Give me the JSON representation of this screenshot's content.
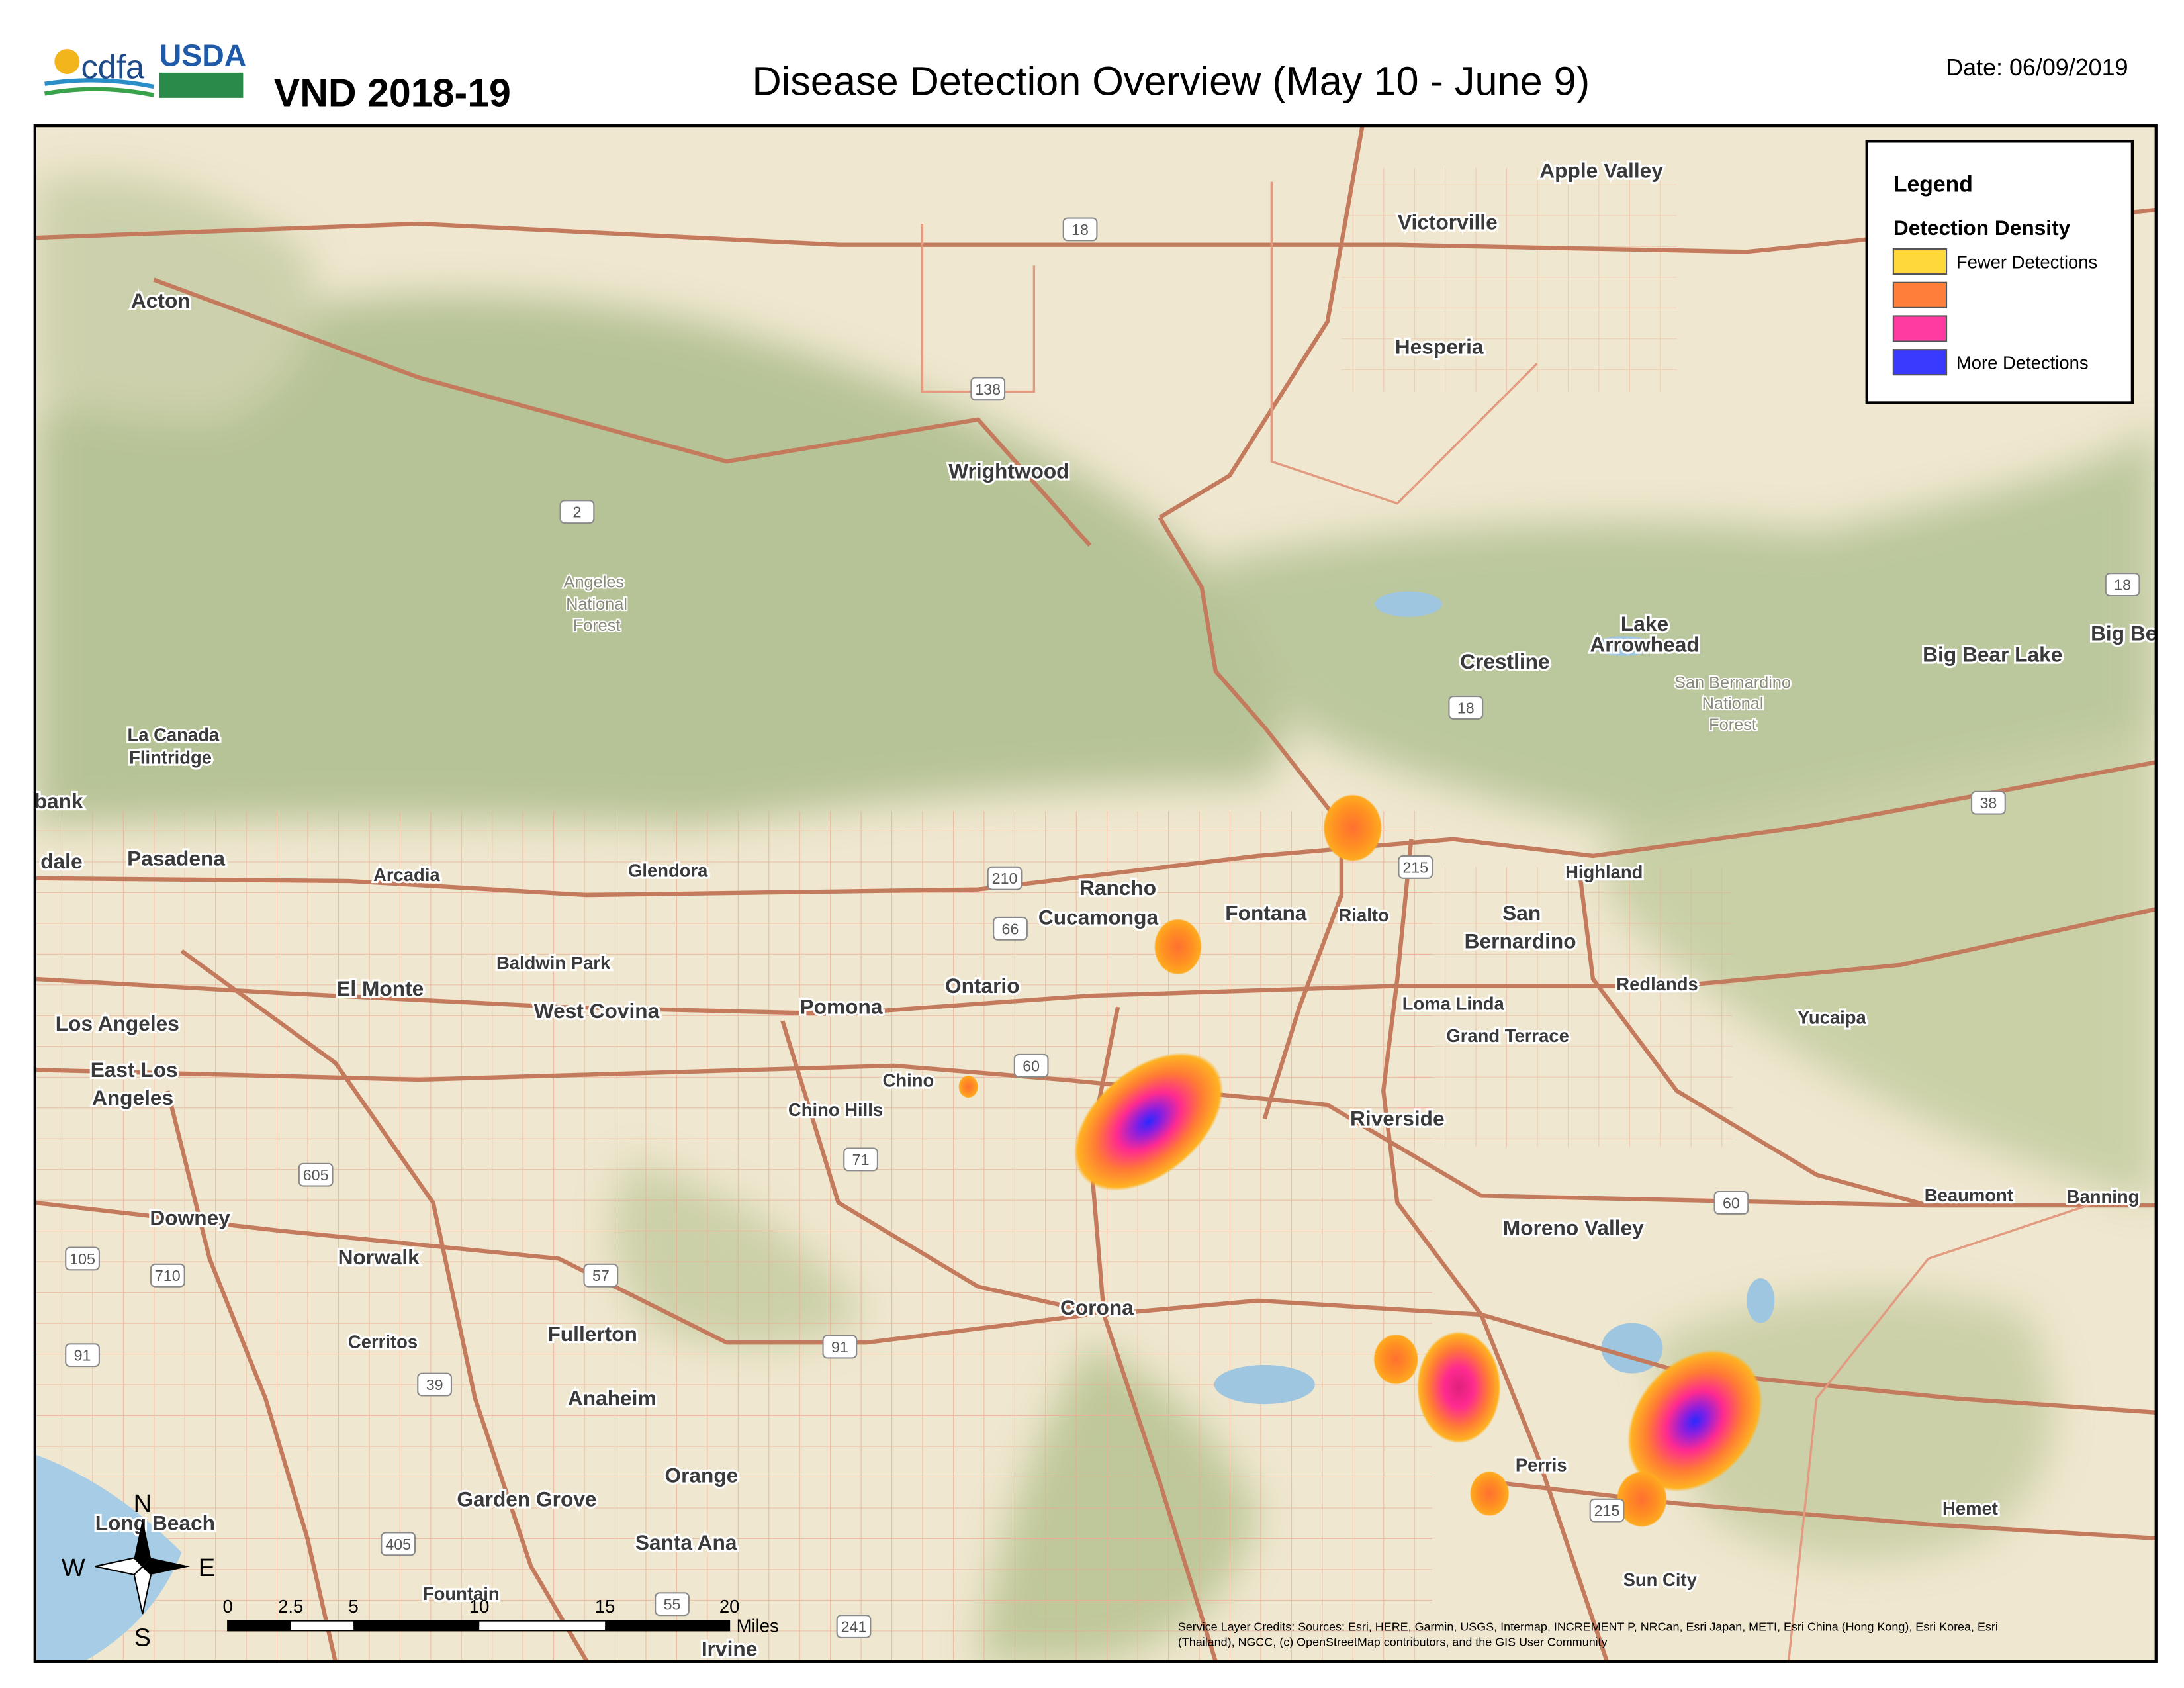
{
  "header": {
    "logo": {
      "agency": "cdfa",
      "partner": "USDA"
    },
    "program": "VND 2018-19",
    "title": "Disease Detection Overview (May 10 - June 9)",
    "date": "Date: 06/09/2019"
  },
  "legend": {
    "title": "Legend",
    "subtitle": "Detection Density",
    "items": [
      {
        "color": "#ffd83a",
        "label": "Fewer Detections"
      },
      {
        "color": "#ff7f3a"
      },
      {
        "color": "#ff3aa0"
      },
      {
        "color": "#3a3aff",
        "label": "More Detections"
      }
    ]
  },
  "places": [
    "Apple Valley",
    "Victorville",
    "Acton",
    "Hesperia",
    "Wrightwood",
    "Angeles",
    "National",
    "Forest",
    "Crestline",
    "Lake",
    "Arrowhead",
    "San Bernardino",
    "National",
    "Forest",
    "Big Bear Lake",
    "Big Be",
    "La Canada",
    "Flintridge",
    "bank",
    "dale",
    "Pasadena",
    "Arcadia",
    "Glendora",
    "Rancho",
    "Cucamonga",
    "Fontana",
    "Rialto",
    "Highland",
    "San",
    "Bernardino",
    "Baldwin Park",
    "El Monte",
    "West Covina",
    "Pomona",
    "Ontario",
    "Loma Linda",
    "Redlands",
    "Yucaipa",
    "Grand Terrace",
    "Los Angeles",
    "East Los",
    "Angeles",
    "Chino",
    "Chino Hills",
    "Riverside",
    "Beaumont",
    "Banning",
    "Downey",
    "Moreno Valley",
    "Norwalk",
    "Corona",
    "Cerritos",
    "Fullerton",
    "Anaheim",
    "Orange",
    "Perris",
    "Garden Grove",
    "Hemet",
    "Long Beach",
    "Santa Ana",
    "Fountain",
    "Sun City",
    "Irvine"
  ],
  "shields": [
    "18",
    "138",
    "2",
    "210",
    "66",
    "60",
    "71",
    "605",
    "105",
    "710",
    "57",
    "91",
    "91",
    "39",
    "405",
    "55",
    "241",
    "18",
    "38",
    "18",
    "60",
    "215",
    "215"
  ],
  "compass": {
    "north": "N",
    "south": "S",
    "east": "E",
    "west": "W"
  },
  "scale_bar": {
    "ticks": [
      "0",
      "2.5",
      "5",
      "10",
      "15",
      "20"
    ],
    "unit": "Miles"
  },
  "credits": [
    "Service Layer Credits: Sources: Esri, HERE, Garmin, USGS, Intermap, INCREMENT P, NRCan, Esri Japan, METI, Esri China (Hong Kong), Esri Korea, Esri",
    "(Thailand), NGCC, (c) OpenStreetMap contributors, and the GIS User Community"
  ]
}
